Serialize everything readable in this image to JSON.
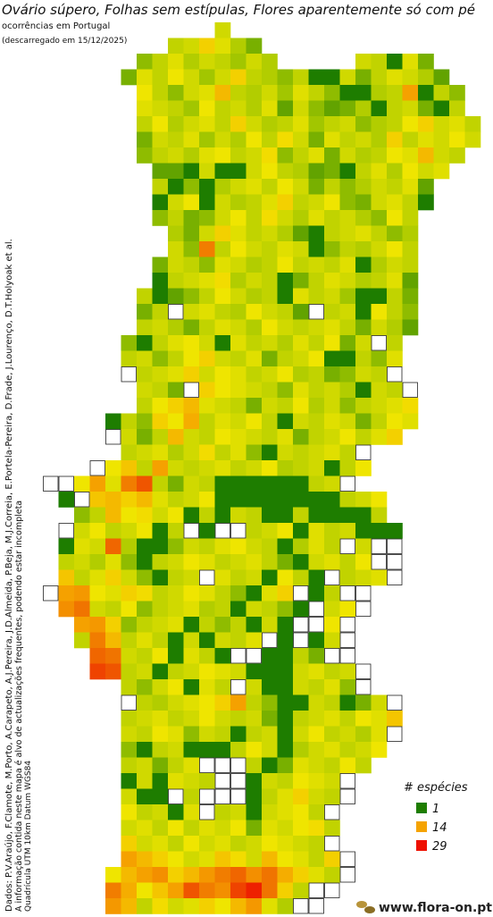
{
  "header": {
    "title": "Ovário súpero, Folhas sem estípulas, Flores aparentemente só com pé",
    "subtitle": "ocorrências em Portugal",
    "download": "(descarregado em 15/12/2025)"
  },
  "credits": {
    "authors": "Dados: P.V.Araújo, F.Clamote, M.Porto, A.Carapeto, A.J.Pereira, J.D.Almeida, P.Beja, M.J.Correia, E.Portela-Pereira, D.Frade, J.Lourenço, D.T.Holyoak et al.",
    "note": "A informação contida neste mapa é alvo de actualizações frequentes, podendo estar incompleta",
    "grid": "Quadrícula UTM 10km Datum WGS84"
  },
  "legend": {
    "title": "# espécies",
    "items": [
      {
        "value": 1,
        "color": "#1e7d00"
      },
      {
        "value": 14,
        "color": "#f5a300"
      },
      {
        "value": 29,
        "color": "#ee1000"
      }
    ]
  },
  "color_scale": [
    "#1e7d00",
    "#9cc400",
    "#f2e600",
    "#f5a300",
    "#f07000",
    "#ee1000"
  ],
  "footer": "www.flora-on.pt",
  "map": {
    "rows": [
      {
        "row": 0,
        "col": 11,
        "values": [
          10
        ]
      },
      {
        "row": 1,
        "col": 8,
        "values": [
          9,
          10,
          14,
          11,
          8,
          5
        ]
      },
      {
        "row": 2,
        "col": 6,
        "values": [
          6,
          9,
          11,
          8,
          10,
          9,
          7,
          10,
          8
        ]
      },
      {
        "row": 2,
        "col": 20,
        "values": [
          10,
          9,
          1,
          11,
          5
        ]
      },
      {
        "row": 3,
        "col": 5,
        "values": [
          5,
          11,
          9,
          12,
          10,
          7,
          10,
          14,
          9,
          8,
          6,
          9,
          1,
          1,
          10,
          5,
          9,
          11,
          10,
          8,
          4
        ]
      },
      {
        "row": 4,
        "col": 6,
        "values": [
          12,
          9,
          6,
          10,
          11,
          16,
          9,
          8,
          10,
          7,
          11,
          9,
          6,
          1,
          1,
          8,
          9,
          18,
          1,
          9,
          6
        ]
      },
      {
        "row": 5,
        "col": 6,
        "values": [
          11,
          10,
          9,
          7,
          12,
          9,
          10,
          8,
          11,
          4,
          10,
          6,
          4,
          5,
          8,
          1,
          9,
          10,
          5,
          1,
          9
        ]
      },
      {
        "row": 6,
        "col": 6,
        "values": [
          9,
          12,
          8,
          10,
          11,
          9,
          14,
          10,
          8,
          9,
          11,
          7,
          9,
          10,
          6,
          8,
          9,
          12,
          14,
          10,
          11,
          9
        ]
      },
      {
        "row": 7,
        "col": 6,
        "values": [
          5,
          10,
          9,
          11,
          7,
          10,
          8,
          12,
          9,
          13,
          10,
          5,
          11,
          9,
          10,
          8,
          14,
          9,
          11,
          10,
          12,
          10
        ]
      },
      {
        "row": 8,
        "col": 6,
        "values": [
          6,
          9,
          10,
          8,
          11,
          12,
          9,
          10,
          13,
          6,
          9,
          11,
          5,
          10,
          8,
          9,
          12,
          11,
          16,
          10,
          9
        ]
      },
      {
        "row": 9,
        "col": 7,
        "values": [
          4,
          4,
          1,
          10,
          1,
          1,
          10,
          12,
          9,
          8,
          4,
          5,
          1,
          9,
          11,
          8,
          12,
          10,
          11
        ]
      },
      {
        "row": 10,
        "col": 7,
        "values": [
          9,
          1,
          6,
          1,
          8,
          10,
          11,
          9,
          12,
          10,
          5,
          9,
          6,
          8,
          10,
          9,
          11,
          4
        ]
      },
      {
        "row": 11,
        "col": 7,
        "values": [
          1,
          10,
          12,
          1,
          10,
          8,
          9,
          11,
          14,
          9,
          10,
          12,
          6,
          5,
          10,
          11,
          9,
          1
        ]
      },
      {
        "row": 12,
        "col": 7,
        "values": [
          6,
          9,
          5,
          6,
          10,
          12,
          9,
          13,
          10,
          8,
          11,
          9,
          10,
          8,
          6,
          12,
          9
        ]
      },
      {
        "row": 13,
        "col": 8,
        "values": [
          8,
          5,
          10,
          14,
          11,
          9,
          10,
          8,
          4,
          1,
          9,
          10,
          11,
          9,
          6,
          8
        ]
      },
      {
        "row": 14,
        "col": 8,
        "values": [
          10,
          6,
          22,
          9,
          12,
          10,
          9,
          11,
          10,
          1,
          6,
          9,
          8,
          10,
          12,
          9
        ]
      },
      {
        "row": 15,
        "col": 7,
        "values": [
          5,
          10,
          9,
          6,
          11,
          10,
          8,
          9,
          12,
          9,
          10,
          9,
          11,
          1,
          8,
          10,
          9
        ]
      },
      {
        "row": 16,
        "col": 7,
        "values": [
          1,
          9,
          10,
          11,
          13,
          8,
          10,
          9,
          1,
          5,
          9,
          11,
          10,
          8,
          9,
          11,
          4
        ]
      },
      {
        "row": 17,
        "col": 6,
        "values": [
          9,
          1,
          4,
          6,
          9,
          12,
          10,
          8,
          9,
          1,
          11,
          9,
          10,
          7,
          1,
          1,
          9,
          5
        ]
      },
      {
        "row": 18,
        "col": 6,
        "values": [
          5,
          9,
          null,
          10,
          11,
          9,
          8,
          12,
          10,
          9,
          4,
          null,
          9,
          10,
          1,
          12,
          9,
          6
        ]
      },
      {
        "row": 19,
        "col": 6,
        "values": [
          9,
          10,
          8,
          5,
          9,
          11,
          10,
          8,
          12,
          10,
          9,
          10,
          11,
          9,
          5,
          10,
          8,
          4
        ]
      },
      {
        "row": 20,
        "col": 5,
        "values": [
          6,
          1,
          9,
          11,
          12,
          10,
          1,
          11,
          9,
          10,
          8,
          11,
          9,
          12,
          5,
          10,
          null,
          9
        ]
      },
      {
        "row": 21,
        "col": 5,
        "values": [
          9,
          10,
          6,
          9,
          12,
          14,
          10,
          9,
          11,
          5,
          9,
          10,
          12,
          1,
          1,
          9,
          6,
          11
        ]
      },
      {
        "row": 22,
        "col": 5,
        "values": [
          null,
          9,
          10,
          11,
          14,
          10,
          12,
          11,
          9,
          10,
          12,
          8,
          9,
          5,
          6,
          10,
          9,
          null
        ]
      },
      {
        "row": 23,
        "col": 6,
        "values": [
          10,
          9,
          5,
          null,
          14,
          12,
          11,
          10,
          9,
          6,
          11,
          9,
          10,
          8,
          1,
          10,
          9,
          null
        ]
      },
      {
        "row": 24,
        "col": 6,
        "values": [
          9,
          12,
          14,
          16,
          11,
          10,
          9,
          5,
          10,
          9,
          12,
          8,
          10,
          6,
          9,
          10,
          11,
          13
        ]
      },
      {
        "row": 25,
        "col": 4,
        "values": [
          1,
          9,
          6,
          14,
          12,
          17,
          9,
          11,
          10,
          12,
          9,
          1,
          10,
          9,
          11,
          10,
          5,
          9,
          12,
          11
        ]
      },
      {
        "row": 26,
        "col": 4,
        "values": [
          null,
          10,
          5,
          9,
          16,
          10,
          9,
          12,
          11,
          10,
          9,
          11,
          5,
          9,
          10,
          12,
          9,
          11,
          14
        ]
      },
      {
        "row": 27,
        "col": 5,
        "values": [
          9,
          10,
          11,
          8,
          10,
          13,
          9,
          11,
          6,
          1,
          10,
          9,
          10,
          11,
          9,
          null
        ]
      },
      {
        "row": 28,
        "col": 3,
        "values": [
          null,
          12,
          15,
          9,
          18,
          10,
          9,
          10,
          11,
          9,
          10,
          12,
          8,
          9,
          10,
          1,
          9,
          12
        ]
      },
      {
        "row": 29,
        "col": 0,
        "values": [
          null,
          null,
          12,
          18,
          11,
          22,
          25,
          9,
          5,
          10,
          9,
          1,
          1,
          1,
          1,
          1,
          1,
          9,
          10,
          null
        ]
      },
      {
        "row": 30,
        "col": 1,
        "values": [
          1,
          null,
          15,
          16,
          14,
          16,
          11,
          9,
          10,
          12,
          1,
          1,
          1,
          1,
          1,
          1,
          1,
          1,
          9,
          10,
          12
        ]
      },
      {
        "row": 31,
        "col": 2,
        "values": [
          6,
          9,
          16,
          12,
          13,
          10,
          12,
          1,
          9,
          1,
          10,
          9,
          1,
          1,
          9,
          1,
          1,
          1,
          1,
          9
        ]
      },
      {
        "row": 32,
        "col": 1,
        "values": [
          null,
          10,
          12,
          9,
          10,
          12,
          1,
          9,
          null,
          1,
          null,
          null,
          9,
          10,
          12,
          1,
          11,
          9,
          10,
          1,
          1,
          1
        ]
      },
      {
        "row": 33,
        "col": 1,
        "values": [
          1,
          11,
          10,
          24,
          8,
          1,
          1,
          6,
          10,
          9,
          11,
          12,
          10,
          9,
          1,
          8,
          11,
          9,
          null,
          10,
          null,
          null
        ]
      },
      {
        "row": 34,
        "col": 1,
        "values": [
          9,
          10,
          8,
          11,
          6,
          1,
          9,
          10,
          12,
          11,
          9,
          10,
          11,
          9,
          5,
          1,
          10,
          11,
          9,
          12,
          null,
          null
        ]
      },
      {
        "row": 35,
        "col": 1,
        "values": [
          15,
          9,
          11,
          14,
          10,
          6,
          1,
          9,
          10,
          null,
          11,
          9,
          10,
          1,
          12,
          9,
          1,
          null,
          9,
          10,
          11,
          null
        ]
      },
      {
        "row": 36,
        "col": 0,
        "values": [
          null,
          18,
          19,
          12,
          11,
          14,
          13,
          9,
          10,
          12,
          11,
          9,
          6,
          1,
          11,
          14,
          null,
          1,
          9,
          null,
          null
        ]
      },
      {
        "row": 37,
        "col": 1,
        "values": [
          20,
          23,
          10,
          9,
          12,
          6,
          9,
          10,
          11,
          8,
          9,
          1,
          10,
          9,
          6,
          1,
          null,
          10,
          12,
          null
        ]
      },
      {
        "row": 38,
        "col": 2,
        "values": [
          18,
          19,
          14,
          6,
          9,
          10,
          11,
          1,
          9,
          6,
          9,
          1,
          10,
          1,
          null,
          null,
          12,
          null
        ]
      },
      {
        "row": 39,
        "col": 2,
        "values": [
          9,
          22,
          16,
          9,
          11,
          9,
          1,
          10,
          1,
          10,
          9,
          11,
          null,
          1,
          null,
          1,
          10,
          null
        ]
      },
      {
        "row": 40,
        "col": 3,
        "values": [
          24,
          23,
          10,
          9,
          12,
          1,
          11,
          9,
          1,
          null,
          null,
          1,
          1,
          9,
          5,
          null,
          null
        ]
      },
      {
        "row": 41,
        "col": 3,
        "values": [
          26,
          25,
          9,
          10,
          1,
          9,
          10,
          12,
          11,
          10,
          1,
          1,
          1,
          10,
          11,
          9,
          10,
          null
        ]
      },
      {
        "row": 42,
        "col": 5,
        "values": [
          9,
          6,
          10,
          12,
          1,
          11,
          9,
          null,
          10,
          1,
          1,
          10,
          9,
          11,
          6,
          null
        ]
      },
      {
        "row": 43,
        "col": 5,
        "values": [
          null,
          9,
          8,
          10,
          11,
          12,
          14,
          18,
          9,
          6,
          1,
          1,
          10,
          9,
          1,
          5,
          10,
          null
        ]
      },
      {
        "row": 44,
        "col": 5,
        "values": [
          9,
          10,
          11,
          9,
          10,
          12,
          10,
          9,
          10,
          5,
          1,
          9,
          10,
          11,
          9,
          12,
          11,
          15
        ]
      },
      {
        "row": 45,
        "col": 5,
        "values": [
          10,
          9,
          12,
          11,
          6,
          10,
          9,
          1,
          9,
          10,
          1,
          10,
          12,
          9,
          10,
          8,
          11,
          null
        ]
      },
      {
        "row": 46,
        "col": 5,
        "values": [
          6,
          1,
          9,
          10,
          1,
          1,
          1,
          9,
          12,
          10,
          1,
          8,
          10,
          11,
          9,
          10,
          12
        ]
      },
      {
        "row": 47,
        "col": 5,
        "values": [
          9,
          10,
          5,
          9,
          11,
          null,
          null,
          null,
          9,
          1,
          5,
          11,
          10,
          9,
          12,
          9
        ]
      },
      {
        "row": 48,
        "col": 5,
        "values": [
          1,
          10,
          1,
          11,
          10,
          9,
          null,
          null,
          1,
          10,
          9,
          12,
          11,
          10,
          null
        ]
      },
      {
        "row": 49,
        "col": 5,
        "values": [
          10,
          1,
          1,
          null,
          9,
          null,
          null,
          null,
          1,
          9,
          11,
          14,
          10,
          9,
          null
        ]
      },
      {
        "row": 50,
        "col": 5,
        "values": [
          12,
          9,
          10,
          1,
          11,
          null,
          9,
          10,
          1,
          10,
          11,
          12,
          9,
          null
        ]
      },
      {
        "row": 51,
        "col": 5,
        "values": [
          10,
          11,
          9,
          12,
          9,
          11,
          10,
          12,
          5,
          11,
          10,
          12,
          13,
          9
        ]
      },
      {
        "row": 52,
        "col": 5,
        "values": [
          14,
          10,
          11,
          9,
          12,
          10,
          11,
          9,
          10,
          12,
          11,
          10,
          9,
          null
        ]
      },
      {
        "row": 53,
        "col": 5,
        "values": [
          18,
          16,
          14,
          12,
          10,
          11,
          15,
          13,
          10,
          16,
          12,
          11,
          9,
          14,
          null
        ]
      },
      {
        "row": 54,
        "col": 4,
        "values": [
          12,
          16,
          18,
          20,
          14,
          16,
          19,
          22,
          24,
          20,
          23,
          17,
          14,
          11,
          9,
          null
        ]
      },
      {
        "row": 55,
        "col": 4,
        "values": [
          22,
          17,
          12,
          15,
          18,
          25,
          22,
          20,
          26,
          28,
          23,
          14,
          9,
          null,
          null
        ]
      },
      {
        "row": 56,
        "col": 4,
        "values": [
          19,
          16,
          9,
          13,
          10,
          11,
          14,
          12,
          16,
          19,
          11,
          8,
          null,
          null
        ]
      }
    ]
  }
}
